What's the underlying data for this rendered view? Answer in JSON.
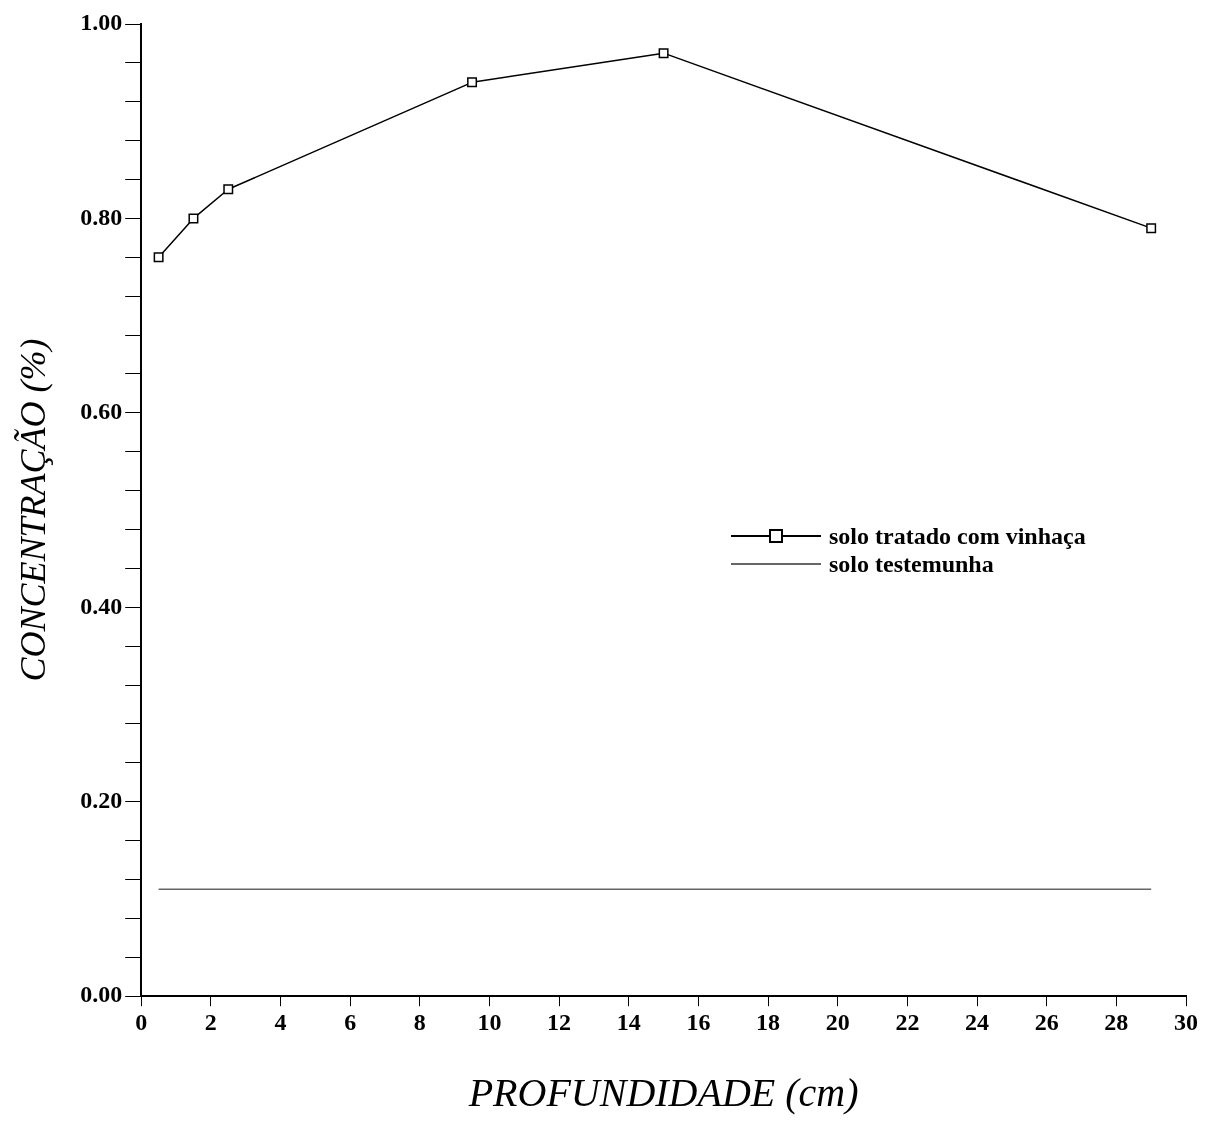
{
  "chart_data": {
    "type": "line",
    "xlabel": "PROFUNDIDADE (cm)",
    "ylabel": "CONCENTRAÇÃO (%)",
    "x": [
      0.5,
      1.5,
      2.5,
      9.5,
      15,
      29
    ],
    "series": [
      {
        "name": "solo tratado com vinhaça",
        "color": "#000000",
        "marker": "square",
        "values": [
          0.76,
          0.8,
          0.83,
          0.94,
          0.97,
          0.79
        ]
      },
      {
        "name": "solo testemunha",
        "color": "#666666",
        "marker": "none",
        "values": [
          0.11,
          0.11,
          0.11,
          0.11,
          0.11,
          0.11
        ]
      }
    ],
    "xlim": [
      0,
      30
    ],
    "xticks": [
      0,
      2,
      4,
      6,
      8,
      10,
      12,
      14,
      16,
      18,
      20,
      22,
      24,
      26,
      28,
      30
    ],
    "ylim": [
      0,
      1
    ],
    "yticks": [
      {
        "value": 0,
        "label": "0.00"
      },
      {
        "value": 0.04,
        "label": null
      },
      {
        "value": 0.08,
        "label": null
      },
      {
        "value": 0.12,
        "label": null
      },
      {
        "value": 0.16,
        "label": null
      },
      {
        "value": 0.2,
        "label": "0.20"
      },
      {
        "value": 0.24,
        "label": null
      },
      {
        "value": 0.28,
        "label": null
      },
      {
        "value": 0.32,
        "label": null
      },
      {
        "value": 0.36,
        "label": null
      },
      {
        "value": 0.4,
        "label": "0.40"
      },
      {
        "value": 0.44,
        "label": null
      },
      {
        "value": 0.48,
        "label": null
      },
      {
        "value": 0.52,
        "label": null
      },
      {
        "value": 0.56,
        "label": null
      },
      {
        "value": 0.6,
        "label": "0.60"
      },
      {
        "value": 0.64,
        "label": null
      },
      {
        "value": 0.68,
        "label": null
      },
      {
        "value": 0.72,
        "label": null
      },
      {
        "value": 0.76,
        "label": null
      },
      {
        "value": 0.8,
        "label": "0.80"
      },
      {
        "value": 0.84,
        "label": null
      },
      {
        "value": 0.88,
        "label": null
      },
      {
        "value": 0.92,
        "label": null
      },
      {
        "value": 0.96,
        "label": null
      },
      {
        "value": 1,
        "label": "1.00"
      }
    ],
    "legend": "right",
    "line_style": "solid"
  }
}
